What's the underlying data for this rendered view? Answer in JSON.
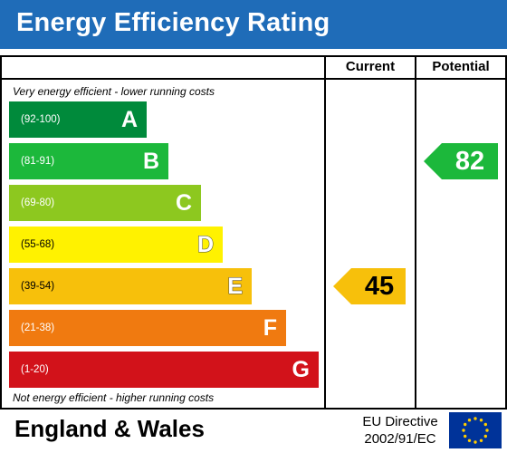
{
  "title": "Energy Efficiency Rating",
  "columns": {
    "current": "Current",
    "potential": "Potential"
  },
  "top_note": "Very energy efficient - lower running costs",
  "bottom_note": "Not energy efficient - higher running costs",
  "footer": {
    "region": "England & Wales",
    "directive_line1": "EU Directive",
    "directive_line2": "2002/91/EC"
  },
  "colors": {
    "header": "#1f6cb8"
  },
  "chart_data": {
    "type": "bar",
    "title": "Energy Efficiency Rating",
    "bands": [
      {
        "letter": "A",
        "range": "(92-100)",
        "color": "#008a3b"
      },
      {
        "letter": "B",
        "range": "(81-91)",
        "color": "#1cb83b"
      },
      {
        "letter": "C",
        "range": "(69-80)",
        "color": "#8dc81f"
      },
      {
        "letter": "D",
        "range": "(55-68)",
        "color": "#fff200"
      },
      {
        "letter": "E",
        "range": "(39-54)",
        "color": "#f7c00b"
      },
      {
        "letter": "F",
        "range": "(21-38)",
        "color": "#f07a10"
      },
      {
        "letter": "G",
        "range": "(1-20)",
        "color": "#d2121a"
      }
    ],
    "current": {
      "value": 45,
      "band": "E",
      "color": "#f7c00b"
    },
    "potential": {
      "value": 82,
      "band": "B",
      "color": "#1cb83b"
    }
  }
}
